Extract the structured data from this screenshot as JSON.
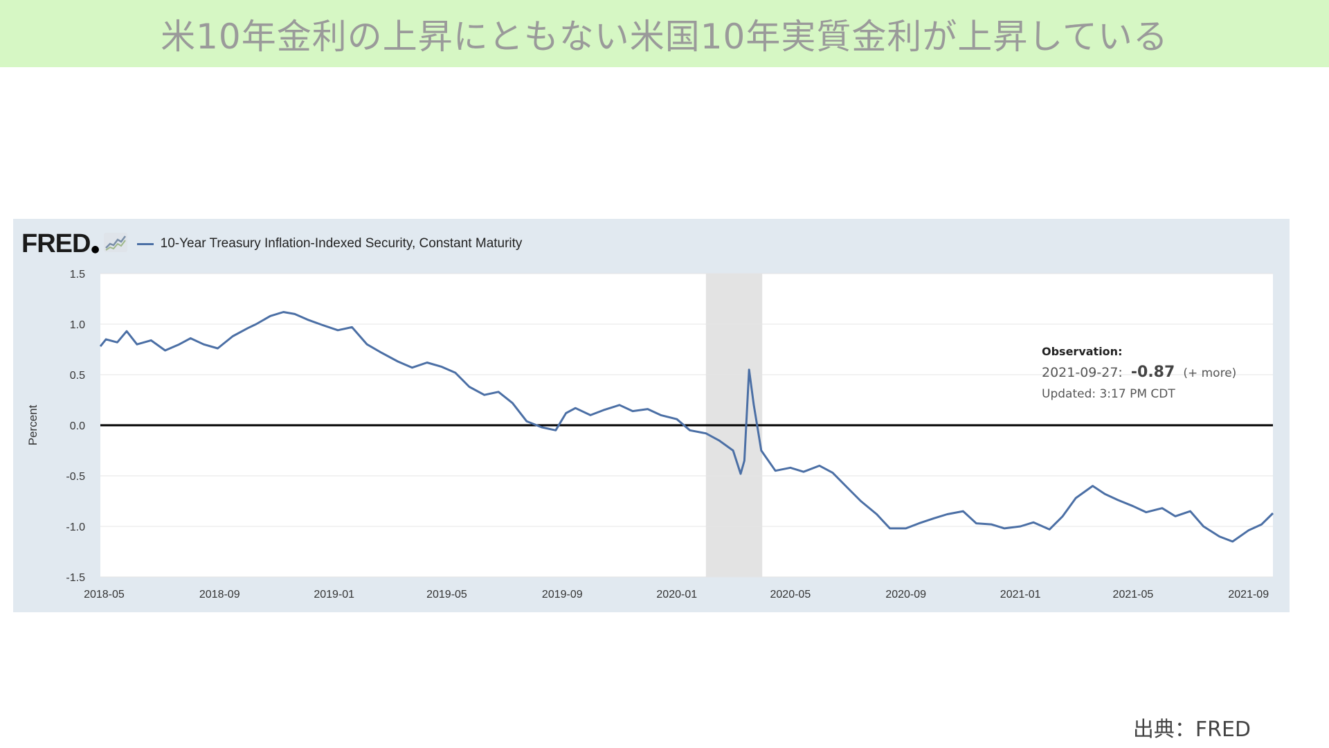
{
  "title": "米10年金利の上昇にともない米国10年実質金利が上昇している",
  "source": "出典：FRED",
  "colors": {
    "title_bg": "#d6f7c4",
    "panel_bg": "#e1e9f0",
    "series": "#4b6fa5",
    "recession": "#e3e3e3"
  },
  "fred": {
    "logo": "FRED",
    "logo_icon": "chart-trend-icon"
  },
  "chart_data": {
    "type": "line",
    "ylabel": "Percent",
    "ylim": [
      -1.5,
      1.5
    ],
    "yticks": [
      {
        "value": 1.5,
        "label": "1.5"
      },
      {
        "value": 1.0,
        "label": "1.0"
      },
      {
        "value": 0.5,
        "label": "0.5"
      },
      {
        "value": 0.0,
        "label": "0.0"
      },
      {
        "value": -0.5,
        "label": "-0.5"
      },
      {
        "value": -1.0,
        "label": "-1.0"
      },
      {
        "value": -1.5,
        "label": "-1.5"
      }
    ],
    "xlim": [
      "2018-04-27",
      "2021-09-27"
    ],
    "xticks": [
      {
        "value": "2018-05-01",
        "label": "2018-05"
      },
      {
        "value": "2018-09-01",
        "label": "2018-09"
      },
      {
        "value": "2019-01-01",
        "label": "2019-01"
      },
      {
        "value": "2019-05-01",
        "label": "2019-05"
      },
      {
        "value": "2019-09-01",
        "label": "2019-09"
      },
      {
        "value": "2020-01-01",
        "label": "2020-01"
      },
      {
        "value": "2020-05-01",
        "label": "2020-05"
      },
      {
        "value": "2020-09-01",
        "label": "2020-09"
      },
      {
        "value": "2021-01-01",
        "label": "2021-01"
      },
      {
        "value": "2021-05-01",
        "label": "2021-05"
      },
      {
        "value": "2021-09-01",
        "label": "2021-09"
      }
    ],
    "recession": {
      "start": "2020-02-01",
      "end": "2020-04-01"
    },
    "grid": true,
    "zero_line": true,
    "series": [
      {
        "name": "10-Year Treasury Inflation-Indexed Security, Constant Maturity",
        "x": [
          "2018-04-27",
          "2018-05-03",
          "2018-05-15",
          "2018-05-25",
          "2018-06-05",
          "2018-06-20",
          "2018-07-05",
          "2018-07-20",
          "2018-08-01",
          "2018-08-15",
          "2018-08-30",
          "2018-09-15",
          "2018-10-01",
          "2018-10-10",
          "2018-10-25",
          "2018-11-08",
          "2018-11-20",
          "2018-12-05",
          "2018-12-20",
          "2019-01-05",
          "2019-01-20",
          "2019-02-05",
          "2019-02-20",
          "2019-03-10",
          "2019-03-25",
          "2019-04-10",
          "2019-04-25",
          "2019-05-10",
          "2019-05-25",
          "2019-06-10",
          "2019-06-25",
          "2019-07-10",
          "2019-07-25",
          "2019-08-10",
          "2019-08-25",
          "2019-09-05",
          "2019-09-15",
          "2019-10-01",
          "2019-10-15",
          "2019-11-01",
          "2019-11-15",
          "2019-12-01",
          "2019-12-15",
          "2020-01-01",
          "2020-01-15",
          "2020-02-01",
          "2020-02-15",
          "2020-03-01",
          "2020-03-09",
          "2020-03-13",
          "2020-03-18",
          "2020-03-23",
          "2020-03-31",
          "2020-04-15",
          "2020-05-01",
          "2020-05-15",
          "2020-06-01",
          "2020-06-15",
          "2020-07-01",
          "2020-07-15",
          "2020-08-01",
          "2020-08-15",
          "2020-09-01",
          "2020-09-15",
          "2020-10-01",
          "2020-10-15",
          "2020-11-01",
          "2020-11-15",
          "2020-12-01",
          "2020-12-15",
          "2021-01-01",
          "2021-01-15",
          "2021-02-01",
          "2021-02-15",
          "2021-03-01",
          "2021-03-19",
          "2021-04-01",
          "2021-04-15",
          "2021-05-01",
          "2021-05-15",
          "2021-06-01",
          "2021-06-15",
          "2021-07-01",
          "2021-07-15",
          "2021-08-01",
          "2021-08-15",
          "2021-09-01",
          "2021-09-15",
          "2021-09-27"
        ],
        "y": [
          0.78,
          0.85,
          0.82,
          0.93,
          0.8,
          0.84,
          0.74,
          0.8,
          0.86,
          0.8,
          0.76,
          0.88,
          0.96,
          1.0,
          1.08,
          1.12,
          1.1,
          1.04,
          0.99,
          0.94,
          0.97,
          0.8,
          0.72,
          0.63,
          0.57,
          0.62,
          0.58,
          0.52,
          0.38,
          0.3,
          0.33,
          0.22,
          0.04,
          -0.02,
          -0.05,
          0.12,
          0.17,
          0.1,
          0.15,
          0.2,
          0.14,
          0.16,
          0.1,
          0.06,
          -0.05,
          -0.08,
          -0.15,
          -0.25,
          -0.48,
          -0.35,
          0.55,
          0.2,
          -0.25,
          -0.45,
          -0.42,
          -0.46,
          -0.4,
          -0.47,
          -0.62,
          -0.75,
          -0.88,
          -1.02,
          -1.02,
          -0.97,
          -0.92,
          -0.88,
          -0.85,
          -0.97,
          -0.98,
          -1.02,
          -1.0,
          -0.96,
          -1.03,
          -0.9,
          -0.72,
          -0.6,
          -0.68,
          -0.74,
          -0.8,
          -0.86,
          -0.82,
          -0.9,
          -0.85,
          -1.0,
          -1.1,
          -1.15,
          -1.04,
          -0.98,
          -0.87
        ]
      }
    ],
    "annotation": {
      "heading": "Observation:",
      "date": "2021-09-27:",
      "value": "-0.87",
      "more": "(+ more)",
      "updated": "Updated: 3:17 PM CDT"
    }
  }
}
